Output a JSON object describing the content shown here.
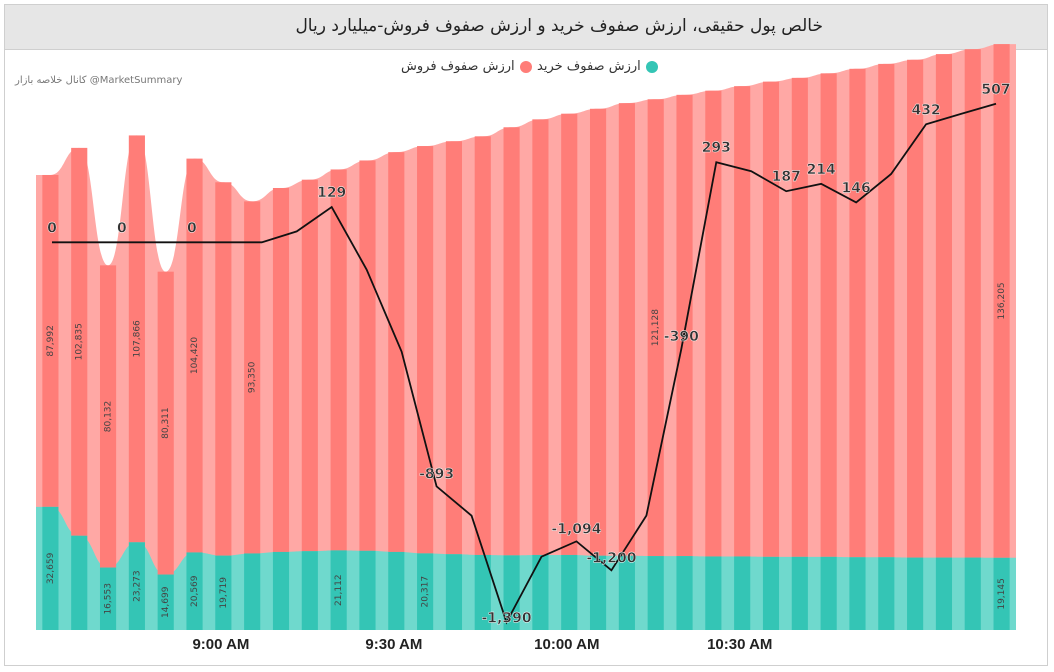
{
  "title": "خالص پول حقیقی، ارزش صفوف خرید و ارزش صفوف فروش-میلیارد ریال",
  "watermark": "کانال خلاصه بازار @MarketSummary",
  "colors": {
    "sell_dark": "#ff7d78",
    "sell_light": "#ffa8a5",
    "buy_dark": "#34c5b5",
    "buy_light": "#6fd9cd",
    "line": "#111111",
    "axis_text": "#222222",
    "bar_label": "#444444"
  },
  "chart_data": {
    "type": "bar",
    "legend": [
      "ارزش صفوف فروش",
      "ارزش صفوف خرید"
    ],
    "x_ticks": [
      "9:00 AM",
      "9:30 AM",
      "10:00 AM",
      "10:30 AM"
    ],
    "x_tick_index": [
      5,
      11,
      17,
      23
    ],
    "series": [
      {
        "name": "ارزش صفوف فروش",
        "values": [
          87992,
          102835,
          80132,
          107866,
          80311,
          104420,
          99000,
          93350,
          96500,
          98500,
          101000,
          103500,
          106000,
          108000,
          109500,
          111000,
          113500,
          115500,
          117000,
          118500,
          120000,
          121128,
          122300,
          123500,
          124700,
          126000,
          127000,
          128200,
          129500,
          130800,
          132000,
          133500,
          134800,
          136205
        ]
      },
      {
        "name": "ارزش صفوف خرید",
        "values": [
          32659,
          25000,
          16553,
          23273,
          14699,
          20569,
          19719,
          20300,
          20700,
          20900,
          21112,
          21000,
          20700,
          20317,
          20100,
          19900,
          19800,
          19900,
          19900,
          19700,
          19700,
          19600,
          19600,
          19500,
          19500,
          19400,
          19400,
          19400,
          19300,
          19300,
          19200,
          19200,
          19200,
          19145
        ]
      },
      {
        "name": "خالص پول حقیقی",
        "values": [
          0,
          0,
          0,
          0,
          0,
          0,
          0,
          40,
          129,
          -100,
          -400,
          -893,
          -1000,
          -1390,
          -1150,
          -1094,
          -1200,
          -1000,
          -390,
          293,
          260,
          187,
          214,
          146,
          250,
          432,
          470,
          507
        ]
      }
    ],
    "bar_value_labels": [
      {
        "index": 0,
        "series": "sell",
        "text": "87,992"
      },
      {
        "index": 1,
        "series": "sell",
        "text": "102,835"
      },
      {
        "index": 2,
        "series": "sell",
        "text": "80,132"
      },
      {
        "index": 3,
        "series": "sell",
        "text": "107,866"
      },
      {
        "index": 4,
        "series": "sell",
        "text": "80,311"
      },
      {
        "index": 5,
        "series": "sell",
        "text": "104,420"
      },
      {
        "index": 7,
        "series": "sell",
        "text": "93,350"
      },
      {
        "index": 21,
        "series": "sell",
        "text": "121,128"
      },
      {
        "index": 33,
        "series": "sell",
        "text": "136,205"
      },
      {
        "index": 0,
        "series": "buy",
        "text": "32,659"
      },
      {
        "index": 2,
        "series": "buy",
        "text": "16,553"
      },
      {
        "index": 3,
        "series": "buy",
        "text": "23,273"
      },
      {
        "index": 4,
        "series": "buy",
        "text": "14,699"
      },
      {
        "index": 5,
        "series": "buy",
        "text": "20,569"
      },
      {
        "index": 6,
        "series": "buy",
        "text": "19,719"
      },
      {
        "index": 10,
        "series": "buy",
        "text": "21,112"
      },
      {
        "index": 13,
        "series": "buy",
        "text": "20,317"
      },
      {
        "index": 33,
        "series": "buy",
        "text": "19,145"
      }
    ],
    "line_point_labels": [
      {
        "index": 0,
        "text": "0"
      },
      {
        "index": 2,
        "text": "0"
      },
      {
        "index": 4,
        "text": "0"
      },
      {
        "index": 8,
        "text": "129"
      },
      {
        "index": 11,
        "text": "-893"
      },
      {
        "index": 13,
        "text": "-1,390"
      },
      {
        "index": 15,
        "text": "-1,094"
      },
      {
        "index": 16,
        "text": "-1,200"
      },
      {
        "index": 18,
        "text": "-390"
      },
      {
        "index": 19,
        "text": "293"
      },
      {
        "index": 21,
        "text": "187"
      },
      {
        "index": 22,
        "text": "214"
      },
      {
        "index": 23,
        "text": "146"
      },
      {
        "index": 25,
        "text": "432"
      },
      {
        "index": 27,
        "text": "507"
      }
    ],
    "ylim_bars": [
      0,
      140000
    ],
    "ylim_line": [
      -1400,
      550
    ],
    "grid": false
  }
}
